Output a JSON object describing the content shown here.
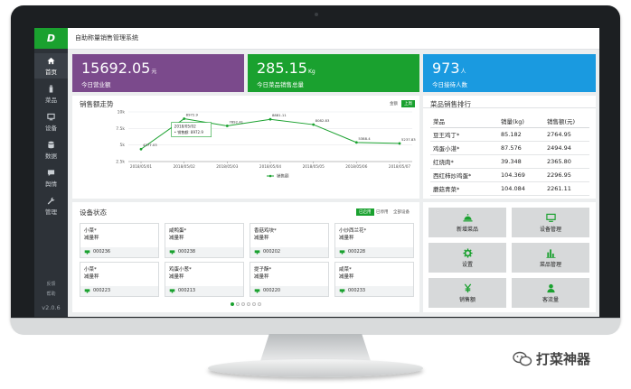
{
  "app": {
    "logo_text": "D",
    "title": "自助称量销售管理系统",
    "version": "v2.0.6",
    "brand_color": "#1aa12f"
  },
  "sidebar": {
    "items": [
      {
        "label": "首页",
        "icon": "home-icon",
        "active": true
      },
      {
        "label": "菜品",
        "icon": "bottle-icon",
        "active": false
      },
      {
        "label": "设备",
        "icon": "monitor-icon",
        "active": false
      },
      {
        "label": "数据",
        "icon": "database-icon",
        "active": false
      },
      {
        "label": "舆情",
        "icon": "chat-icon",
        "active": false
      },
      {
        "label": "管理",
        "icon": "wrench-icon",
        "active": false
      }
    ],
    "links": [
      "反馈",
      "帮助"
    ]
  },
  "stats": [
    {
      "value": "15692.05",
      "unit": "元",
      "label": "今日营业额",
      "color": "#7b4a8c"
    },
    {
      "value": "285.15",
      "unit": "Kg",
      "label": "今日菜品销售总量",
      "color": "#1aa12f"
    },
    {
      "value": "973",
      "unit": "人",
      "label": "今日接待人数",
      "color": "#1a9ae0"
    }
  ],
  "sales_trend": {
    "title": "销售额走势",
    "toggles": [
      "金额",
      "上周"
    ],
    "tooltip": {
      "date": "2018/05/02",
      "text": "销售额: 8972.9"
    },
    "legend": "销售额"
  },
  "chart_data": {
    "type": "line",
    "title": "销售额走势",
    "categories": [
      "2018/05/01",
      "2018/05/02",
      "2018/05/03",
      "2018/05/04",
      "2018/05/05",
      "2018/05/06",
      "2018/05/07"
    ],
    "y_ticks": [
      "10k",
      "7.5k",
      "5k",
      "2.5k"
    ],
    "ylim": [
      2500,
      10000
    ],
    "series": [
      {
        "name": "销售额",
        "values": [
          4377.03,
          8972.9,
          7892.41,
          8881.11,
          8082.83,
          5388.4,
          5237.83
        ],
        "labels": [
          "4377.03",
          "8972.9",
          "7892.41",
          "8881.11",
          "8082.83",
          "5388.4",
          "5237.83"
        ],
        "color": "#1aa12f"
      }
    ]
  },
  "ranking": {
    "title": "菜品销售排行",
    "headers": [
      "菜品",
      "销量(kg)",
      "销售额(元)"
    ],
    "rows": [
      [
        "豆王鸡丁*",
        "85.182",
        "2764.95"
      ],
      [
        "鸡蛋小湛*",
        "87.576",
        "2494.94"
      ],
      [
        "红烧肉*",
        "39.348",
        "2365.80"
      ],
      [
        "西红柿炒鸡蛋*",
        "104.369",
        "2296.95"
      ],
      [
        "蘑菇青菜*",
        "104.084",
        "2261.11"
      ]
    ]
  },
  "devices": {
    "title": "设备状态",
    "filters": [
      "已启用",
      "已停用",
      "全部设备"
    ],
    "cards": [
      {
        "name": "小菜*",
        "type": "减量秤",
        "code": "000236"
      },
      {
        "name": "咸鸭蛋*",
        "type": "减量秤",
        "code": "000238"
      },
      {
        "name": "香菇鸡块*",
        "type": "减量秤",
        "code": "000202"
      },
      {
        "name": "小炒西兰花*",
        "type": "减量秤",
        "code": "000228"
      },
      {
        "name": "小菜*",
        "type": "减量秤",
        "code": "000223"
      },
      {
        "name": "鸡蛋小葱*",
        "type": "减量秤",
        "code": "000213"
      },
      {
        "name": "提子酥*",
        "type": "减量秤",
        "code": "000220"
      },
      {
        "name": "咸菜*",
        "type": "减量秤",
        "code": "000233"
      }
    ],
    "page_count": 6,
    "active_page": 1
  },
  "quick_actions": [
    {
      "label": "新增菜品",
      "icon": "food-bell-icon"
    },
    {
      "label": "设备管理",
      "icon": "monitor-icon"
    },
    {
      "label": "设置",
      "icon": "gear-icon"
    },
    {
      "label": "菜品管理",
      "icon": "bar-chart-icon"
    },
    {
      "label": "销售额",
      "icon": "yen-icon"
    },
    {
      "label": "客流量",
      "icon": "user-icon"
    }
  ],
  "watermark": "打菜神器"
}
